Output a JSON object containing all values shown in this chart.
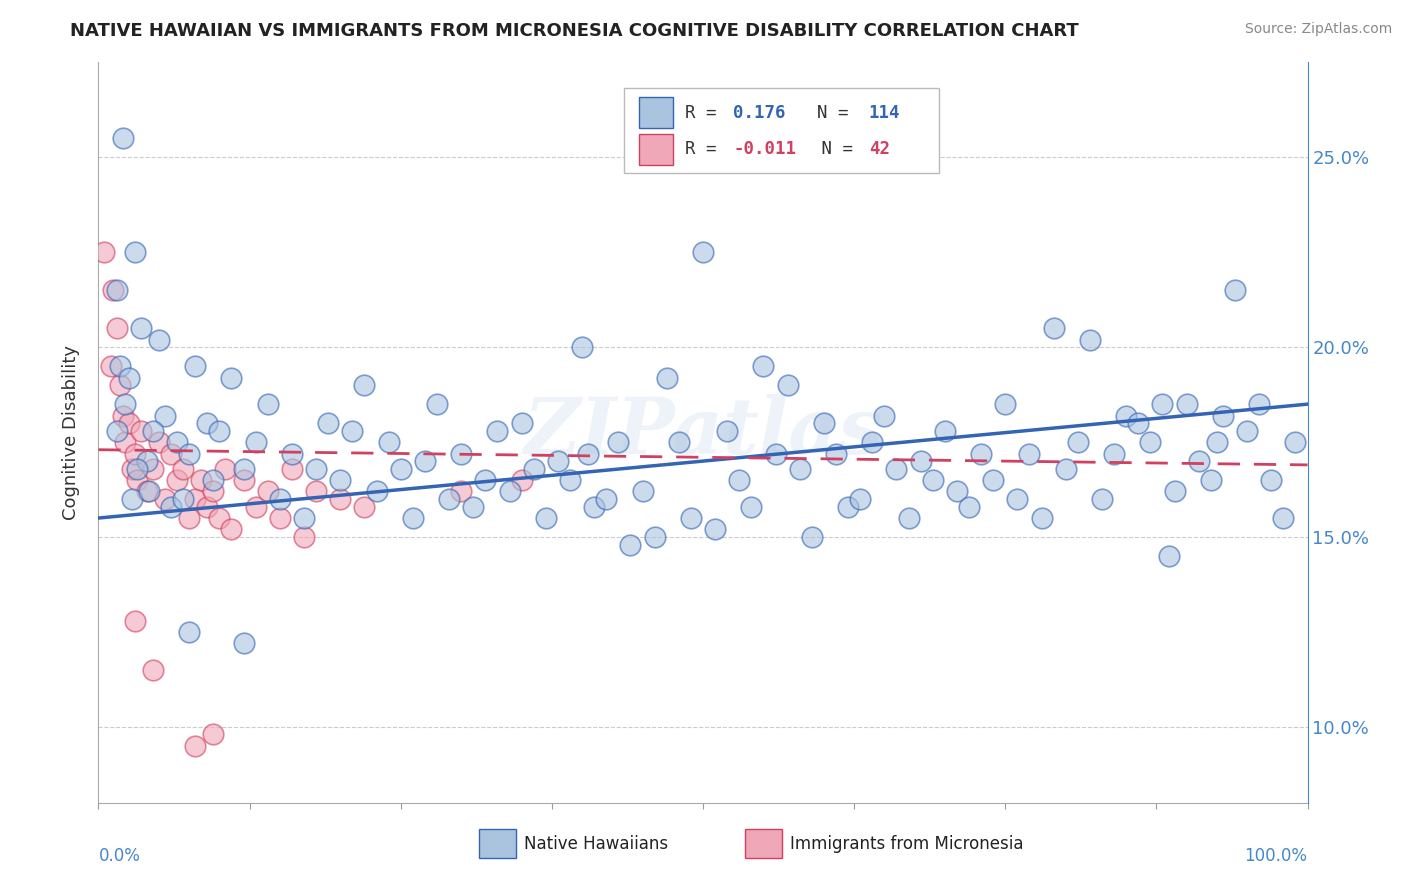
{
  "title": "NATIVE HAWAIIAN VS IMMIGRANTS FROM MICRONESIA COGNITIVE DISABILITY CORRELATION CHART",
  "source": "Source: ZipAtlas.com",
  "ylabel": "Cognitive Disability",
  "y_ticks": [
    10.0,
    15.0,
    20.0,
    25.0
  ],
  "y_tick_labels": [
    "10.0%",
    "15.0%",
    "20.0%",
    "25.0%"
  ],
  "xlim": [
    0.0,
    100.0
  ],
  "ylim": [
    8.0,
    27.5
  ],
  "blue_color": "#aac4e0",
  "pink_color": "#f0a8b8",
  "blue_line_color": "#3464b4",
  "pink_line_color": "#d04060",
  "watermark": "ZIPatlas",
  "blue_scatter": [
    [
      2.0,
      25.5
    ],
    [
      3.0,
      22.5
    ],
    [
      1.5,
      21.5
    ],
    [
      1.8,
      19.5
    ],
    [
      2.5,
      19.2
    ],
    [
      3.5,
      20.5
    ],
    [
      5.0,
      20.2
    ],
    [
      8.0,
      19.5
    ],
    [
      11.0,
      19.2
    ],
    [
      14.0,
      18.5
    ],
    [
      22.0,
      19.0
    ],
    [
      28.0,
      18.5
    ],
    [
      35.0,
      18.0
    ],
    [
      40.0,
      20.0
    ],
    [
      47.0,
      19.2
    ],
    [
      50.0,
      22.5
    ],
    [
      55.0,
      19.5
    ],
    [
      57.0,
      19.0
    ],
    [
      60.0,
      18.0
    ],
    [
      65.0,
      18.2
    ],
    [
      75.0,
      18.5
    ],
    [
      79.0,
      20.5
    ],
    [
      82.0,
      20.2
    ],
    [
      85.0,
      18.2
    ],
    [
      88.0,
      18.5
    ],
    [
      90.0,
      18.5
    ],
    [
      94.0,
      21.5
    ],
    [
      96.0,
      18.5
    ],
    [
      2.2,
      18.5
    ],
    [
      4.0,
      17.0
    ],
    [
      5.5,
      18.2
    ],
    [
      6.5,
      17.5
    ],
    [
      9.0,
      18.0
    ],
    [
      10.0,
      17.8
    ],
    [
      13.0,
      17.5
    ],
    [
      16.0,
      17.2
    ],
    [
      19.0,
      18.0
    ],
    [
      21.0,
      17.8
    ],
    [
      24.0,
      17.5
    ],
    [
      27.0,
      17.0
    ],
    [
      30.0,
      17.2
    ],
    [
      33.0,
      17.8
    ],
    [
      36.0,
      16.8
    ],
    [
      38.0,
      17.0
    ],
    [
      40.5,
      17.2
    ],
    [
      43.0,
      17.5
    ],
    [
      48.0,
      17.5
    ],
    [
      52.0,
      17.8
    ],
    [
      56.0,
      17.2
    ],
    [
      61.0,
      17.2
    ],
    [
      64.0,
      17.5
    ],
    [
      68.0,
      17.0
    ],
    [
      70.0,
      17.8
    ],
    [
      73.0,
      17.2
    ],
    [
      77.0,
      17.2
    ],
    [
      81.0,
      17.5
    ],
    [
      84.0,
      17.2
    ],
    [
      87.0,
      17.5
    ],
    [
      91.0,
      17.0
    ],
    [
      95.0,
      17.8
    ],
    [
      99.0,
      17.5
    ],
    [
      1.5,
      17.8
    ],
    [
      2.8,
      16.0
    ],
    [
      3.2,
      16.8
    ],
    [
      4.2,
      16.2
    ],
    [
      4.5,
      17.8
    ],
    [
      6.0,
      15.8
    ],
    [
      7.0,
      16.0
    ],
    [
      7.5,
      17.2
    ],
    [
      9.5,
      16.5
    ],
    [
      12.0,
      16.8
    ],
    [
      15.0,
      16.0
    ],
    [
      17.0,
      15.5
    ],
    [
      18.0,
      16.8
    ],
    [
      20.0,
      16.5
    ],
    [
      23.0,
      16.2
    ],
    [
      25.0,
      16.8
    ],
    [
      26.0,
      15.5
    ],
    [
      29.0,
      16.0
    ],
    [
      31.0,
      15.8
    ],
    [
      32.0,
      16.5
    ],
    [
      34.0,
      16.2
    ],
    [
      37.0,
      15.5
    ],
    [
      39.0,
      16.5
    ],
    [
      41.0,
      15.8
    ],
    [
      42.0,
      16.0
    ],
    [
      44.0,
      14.8
    ],
    [
      45.0,
      16.2
    ],
    [
      46.0,
      15.0
    ],
    [
      49.0,
      15.5
    ],
    [
      51.0,
      15.2
    ],
    [
      53.0,
      16.5
    ],
    [
      54.0,
      15.8
    ],
    [
      58.0,
      16.8
    ],
    [
      59.0,
      15.0
    ],
    [
      62.0,
      15.8
    ],
    [
      63.0,
      16.0
    ],
    [
      66.0,
      16.8
    ],
    [
      67.0,
      15.5
    ],
    [
      69.0,
      16.5
    ],
    [
      71.0,
      16.2
    ],
    [
      72.0,
      15.8
    ],
    [
      74.0,
      16.5
    ],
    [
      76.0,
      16.0
    ],
    [
      78.0,
      15.5
    ],
    [
      80.0,
      16.8
    ],
    [
      83.0,
      16.0
    ],
    [
      86.0,
      18.0
    ],
    [
      89.0,
      16.2
    ],
    [
      92.0,
      16.5
    ],
    [
      92.5,
      17.5
    ],
    [
      93.0,
      18.2
    ],
    [
      97.0,
      16.5
    ],
    [
      98.0,
      15.5
    ],
    [
      88.5,
      14.5
    ],
    [
      7.5,
      12.5
    ],
    [
      12.0,
      12.2
    ]
  ],
  "pink_scatter": [
    [
      0.5,
      22.5
    ],
    [
      1.0,
      19.5
    ],
    [
      1.2,
      21.5
    ],
    [
      1.5,
      20.5
    ],
    [
      1.8,
      19.0
    ],
    [
      2.0,
      18.2
    ],
    [
      2.2,
      17.5
    ],
    [
      2.5,
      18.0
    ],
    [
      2.8,
      16.8
    ],
    [
      3.0,
      17.2
    ],
    [
      3.2,
      16.5
    ],
    [
      3.5,
      17.8
    ],
    [
      4.0,
      16.2
    ],
    [
      4.5,
      16.8
    ],
    [
      5.0,
      17.5
    ],
    [
      5.5,
      16.0
    ],
    [
      6.0,
      17.2
    ],
    [
      6.5,
      16.5
    ],
    [
      7.0,
      16.8
    ],
    [
      7.5,
      15.5
    ],
    [
      8.0,
      16.0
    ],
    [
      8.5,
      16.5
    ],
    [
      9.0,
      15.8
    ],
    [
      9.5,
      16.2
    ],
    [
      10.0,
      15.5
    ],
    [
      10.5,
      16.8
    ],
    [
      11.0,
      15.2
    ],
    [
      12.0,
      16.5
    ],
    [
      13.0,
      15.8
    ],
    [
      14.0,
      16.2
    ],
    [
      15.0,
      15.5
    ],
    [
      16.0,
      16.8
    ],
    [
      17.0,
      15.0
    ],
    [
      18.0,
      16.2
    ],
    [
      20.0,
      16.0
    ],
    [
      22.0,
      15.8
    ],
    [
      30.0,
      16.2
    ],
    [
      35.0,
      16.5
    ],
    [
      3.0,
      12.8
    ],
    [
      4.5,
      11.5
    ],
    [
      8.0,
      9.5
    ],
    [
      9.5,
      9.8
    ]
  ],
  "blue_regression": [
    0.0,
    100.0
  ],
  "pink_regression": [
    0.0,
    100.0
  ]
}
